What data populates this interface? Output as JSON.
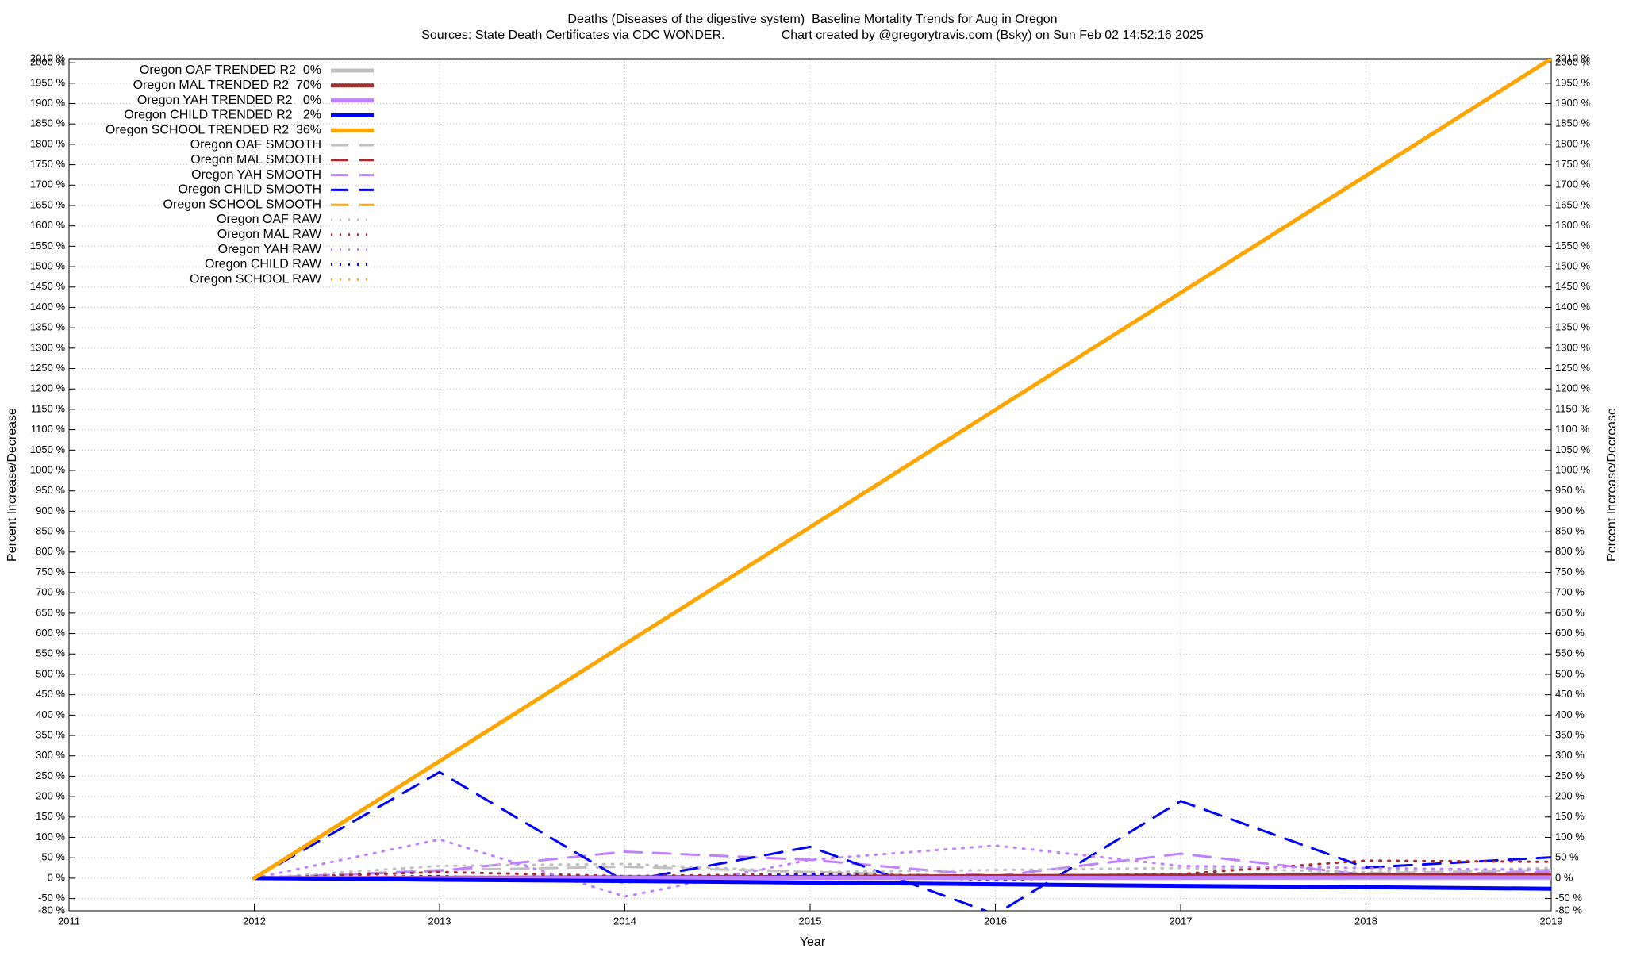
{
  "chart_data": {
    "type": "line",
    "title": "Deaths (Diseases of the digestive system)  Baseline Mortality Trends for Aug in Oregon",
    "subtitle": "Sources: State Death Certificates via CDC WONDER.                Chart created by @gregorytravis.com (Bsky) on Sun Feb 02 14:52:16 2025",
    "xlabel": "Year",
    "ylabel": "Percent Increase/Decrease",
    "y2label": "Percent Increase/Decrease",
    "grid": true,
    "legend": "top-left",
    "x": [
      2012,
      2013,
      2014,
      2015,
      2016,
      2017,
      2018,
      2019
    ],
    "xlim": [
      2011,
      2019
    ],
    "xticks": [
      2011,
      2012,
      2013,
      2014,
      2015,
      2016,
      2017,
      2018,
      2019
    ],
    "ylim": [
      -80,
      2010
    ],
    "yticks": [
      {
        "value": -80,
        "label": "-80 %"
      },
      {
        "value": -50,
        "label": "-50 %"
      },
      {
        "value": 0,
        "label": "0 %"
      },
      {
        "value": 50,
        "label": "50 %"
      },
      {
        "value": 100,
        "label": "100 %"
      },
      {
        "value": 150,
        "label": "150 %"
      },
      {
        "value": 200,
        "label": "200 %"
      },
      {
        "value": 250,
        "label": "250 %"
      },
      {
        "value": 300,
        "label": "300 %"
      },
      {
        "value": 350,
        "label": "350 %"
      },
      {
        "value": 400,
        "label": "400 %"
      },
      {
        "value": 450,
        "label": "450 %"
      },
      {
        "value": 500,
        "label": "500 %"
      },
      {
        "value": 550,
        "label": "550 %"
      },
      {
        "value": 600,
        "label": "600 %"
      },
      {
        "value": 650,
        "label": "650 %"
      },
      {
        "value": 700,
        "label": "700 %"
      },
      {
        "value": 750,
        "label": "750 %"
      },
      {
        "value": 800,
        "label": "800 %"
      },
      {
        "value": 850,
        "label": "850 %"
      },
      {
        "value": 900,
        "label": "900 %"
      },
      {
        "value": 950,
        "label": "950 %"
      },
      {
        "value": 1000,
        "label": "1000 %"
      },
      {
        "value": 1050,
        "label": "1050 %"
      },
      {
        "value": 1100,
        "label": "1100 %"
      },
      {
        "value": 1150,
        "label": "1150 %"
      },
      {
        "value": 1200,
        "label": "1200 %"
      },
      {
        "value": 1250,
        "label": "1250 %"
      },
      {
        "value": 1300,
        "label": "1300 %"
      },
      {
        "value": 1350,
        "label": "1350 %"
      },
      {
        "value": 1400,
        "label": "1400 %"
      },
      {
        "value": 1450,
        "label": "1450 %"
      },
      {
        "value": 1500,
        "label": "1500 %"
      },
      {
        "value": 1550,
        "label": "1550 %"
      },
      {
        "value": 1600,
        "label": "1600 %"
      },
      {
        "value": 1650,
        "label": "1650 %"
      },
      {
        "value": 1700,
        "label": "1700 %"
      },
      {
        "value": 1750,
        "label": "1750 %"
      },
      {
        "value": 1800,
        "label": "1800 %"
      },
      {
        "value": 1850,
        "label": "1850 %"
      },
      {
        "value": 1900,
        "label": "1900 %"
      },
      {
        "value": 1950,
        "label": "1950 %"
      },
      {
        "value": 2000,
        "label": "2000 %"
      },
      {
        "value": 2010,
        "label": "2010 %"
      }
    ],
    "series": [
      {
        "name": "Oregon OAF TRENDED R2  0%",
        "color": "#c0c0c0",
        "dash": "solid",
        "values": [
          0,
          0,
          0,
          0,
          0,
          0,
          0,
          0
        ]
      },
      {
        "name": "Oregon MAL TRENDED R2  70%",
        "color": "#a52a2a",
        "dash": "solid",
        "values": [
          0,
          1,
          2,
          3,
          5,
          6,
          7,
          8
        ]
      },
      {
        "name": "Oregon YAH TRENDED R2   0%",
        "color": "#c080ff",
        "dash": "solid",
        "values": [
          0,
          0,
          1,
          1,
          1,
          1,
          2,
          2
        ]
      },
      {
        "name": "Oregon CHILD TRENDED R2   2%",
        "color": "#0000ff",
        "dash": "solid",
        "values": [
          0,
          -4,
          -7,
          -11,
          -15,
          -19,
          -22,
          -26
        ]
      },
      {
        "name": "Oregon SCHOOL TRENDED R2  36%",
        "color": "#ffa500",
        "dash": "solid",
        "values": [
          0,
          287,
          574,
          861,
          1149,
          1436,
          1723,
          2010
        ]
      },
      {
        "name": "Oregon OAF SMOOTH",
        "color": "#c0c0c0",
        "dash": "dashed",
        "values": [
          0,
          20,
          28,
          15,
          5,
          10,
          12,
          20
        ]
      },
      {
        "name": "Oregon MAL SMOOTH",
        "color": "#a52a2a",
        "dash": "dashed",
        "values": [
          0,
          3,
          2,
          3,
          2,
          3,
          5,
          8
        ]
      },
      {
        "name": "Oregon YAH SMOOTH",
        "color": "#c080ff",
        "dash": "dashed",
        "values": [
          0,
          18,
          65,
          45,
          5,
          60,
          8,
          15
        ]
      },
      {
        "name": "Oregon CHILD SMOOTH",
        "color": "#0000ff",
        "dash": "dashed",
        "values": [
          0,
          260,
          -8,
          77,
          -89,
          189,
          26,
          51
        ]
      },
      {
        "name": "Oregon SCHOOL SMOOTH",
        "color": "#ffa500",
        "dash": "dashed",
        "values": [
          0,
          2,
          3,
          2,
          1,
          3,
          4,
          5
        ]
      },
      {
        "name": "Oregon OAF RAW",
        "color": "#c0c0c0",
        "dash": "dotted",
        "values": [
          0,
          30,
          35,
          15,
          20,
          25,
          15,
          25
        ]
      },
      {
        "name": "Oregon MAL RAW",
        "color": "#a52a2a",
        "dash": "dotted",
        "values": [
          0,
          15,
          5,
          10,
          5,
          10,
          43,
          40
        ]
      },
      {
        "name": "Oregon YAH RAW",
        "color": "#c080ff",
        "dash": "dotted",
        "values": [
          0,
          95,
          -45,
          45,
          80,
          30,
          25,
          20
        ]
      },
      {
        "name": "Oregon CHILD RAW",
        "color": "#0000ff",
        "dash": "dotted",
        "values": [
          0,
          5,
          -10,
          10,
          -5,
          8,
          5,
          10
        ]
      },
      {
        "name": "Oregon SCHOOL RAW",
        "color": "#ffa500",
        "dash": "dotted",
        "values": [
          0,
          3,
          4,
          3,
          2,
          4,
          5,
          6
        ]
      }
    ]
  }
}
